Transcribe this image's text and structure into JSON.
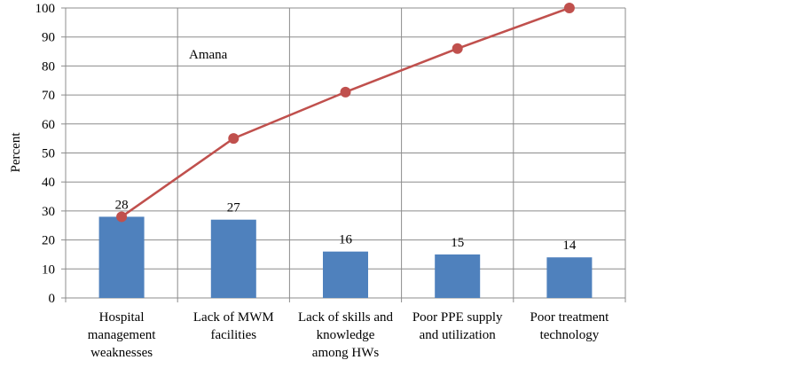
{
  "chart_data": {
    "type": "bar",
    "categories": [
      [
        "Hospital",
        "management",
        "weaknesses"
      ],
      [
        "Lack of MWM",
        "facilities"
      ],
      [
        "Lack of skills and",
        "knowledge",
        "among HWs"
      ],
      [
        "Poor PPE supply",
        "and utilization"
      ],
      [
        "Poor treatment",
        "technology"
      ]
    ],
    "series": [
      {
        "type": "bar",
        "values": [
          28,
          27,
          16,
          15,
          14
        ],
        "data_labels": [
          "28",
          "27",
          "16",
          "15",
          "14"
        ],
        "color": "#4f81bd"
      },
      {
        "type": "line",
        "values": [
          28,
          55,
          71,
          86,
          100
        ],
        "color": "#c0504d"
      }
    ],
    "ylabel": "Percent",
    "ylim": [
      0,
      100
    ],
    "yticks": [
      0,
      10,
      20,
      30,
      40,
      50,
      60,
      70,
      80,
      90,
      100
    ],
    "annotation": "Amana",
    "grid": true,
    "gridColor": "#8c8c8c"
  }
}
